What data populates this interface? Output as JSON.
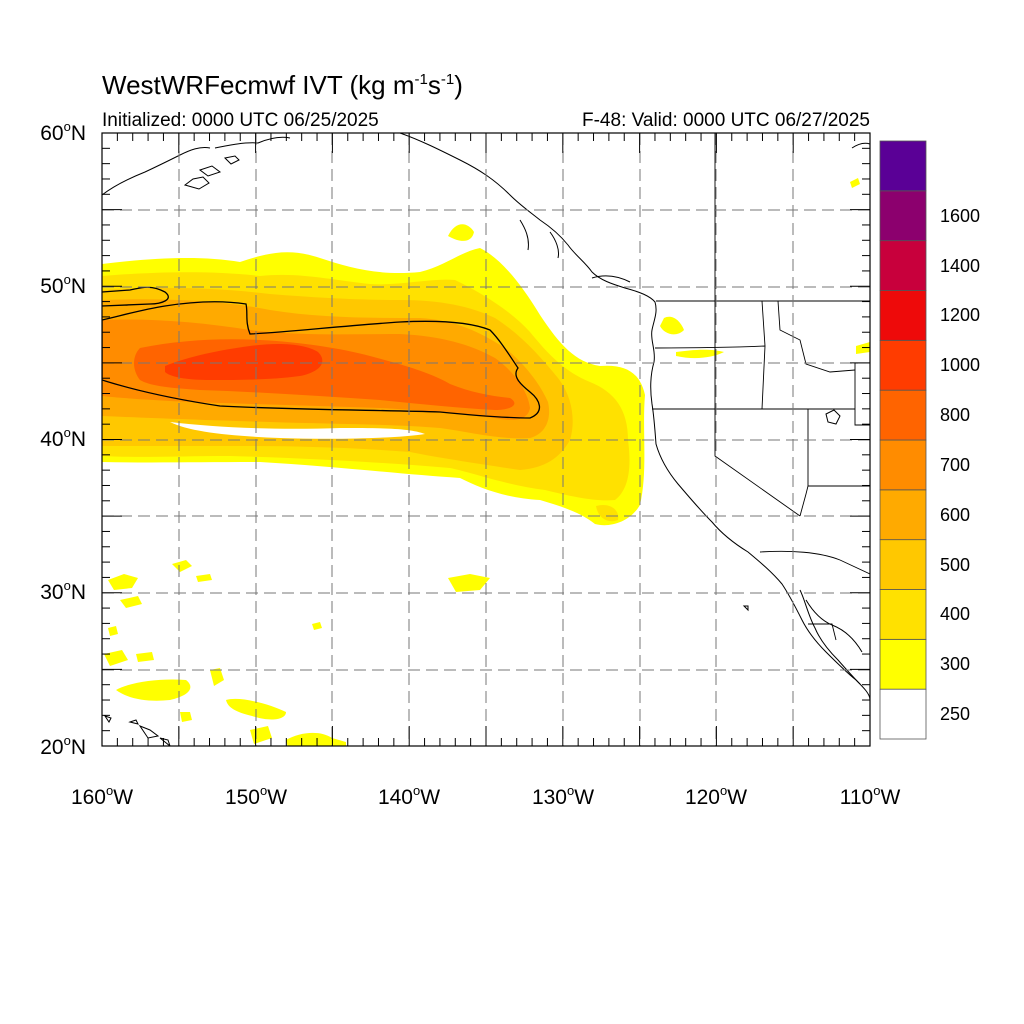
{
  "title": {
    "main": "WestWRFecmwf IVT (kg m",
    "exp1": "-1",
    "mid": "s",
    "exp2": "-1",
    "close": ")"
  },
  "subtitle": {
    "initialized": "Initialized: 0000 UTC 06/25/2025",
    "valid": "F-48: Valid: 0000 UTC 06/27/2025"
  },
  "axes": {
    "lat_ticks": [
      {
        "value": 60,
        "text": "60",
        "hemi": "N"
      },
      {
        "value": 50,
        "text": "50",
        "hemi": "N"
      },
      {
        "value": 40,
        "text": "40",
        "hemi": "N"
      },
      {
        "value": 30,
        "text": "30",
        "hemi": "N"
      },
      {
        "value": 20,
        "text": "20",
        "hemi": "N"
      }
    ],
    "lon_ticks": [
      {
        "value": -160,
        "text": "160",
        "hemi": "W"
      },
      {
        "value": -150,
        "text": "150",
        "hemi": "W"
      },
      {
        "value": -140,
        "text": "140",
        "hemi": "W"
      },
      {
        "value": -130,
        "text": "130",
        "hemi": "W"
      },
      {
        "value": -120,
        "text": "120",
        "hemi": "W"
      },
      {
        "value": -110,
        "text": "110",
        "hemi": "W"
      }
    ],
    "lat_range": [
      20,
      60
    ],
    "lon_range": [
      -160,
      -110
    ],
    "grid": "dashed"
  },
  "colorbar": {
    "labels": [
      "250",
      "300",
      "400",
      "500",
      "600",
      "700",
      "800",
      "1000",
      "1200",
      "1400",
      "1600"
    ],
    "colors": [
      "#ffffff",
      "#ffff00",
      "#ffe100",
      "#ffc800",
      "#ffaa00",
      "#ff8c00",
      "#ff6400",
      "#ff3c00",
      "#ee0a0a",
      "#c8003c",
      "#8c006e",
      "#5a0096"
    ]
  },
  "colors": {
    "ivt_250": "#ffff00",
    "ivt_300": "#ffe100",
    "ivt_400": "#ffc800",
    "ivt_500": "#ffaa00",
    "ivt_600": "#ff8c00",
    "ivt_700": "#ff6400",
    "ivt_800": "#ff3c00",
    "coast": "#000000",
    "grid": "#777777"
  }
}
